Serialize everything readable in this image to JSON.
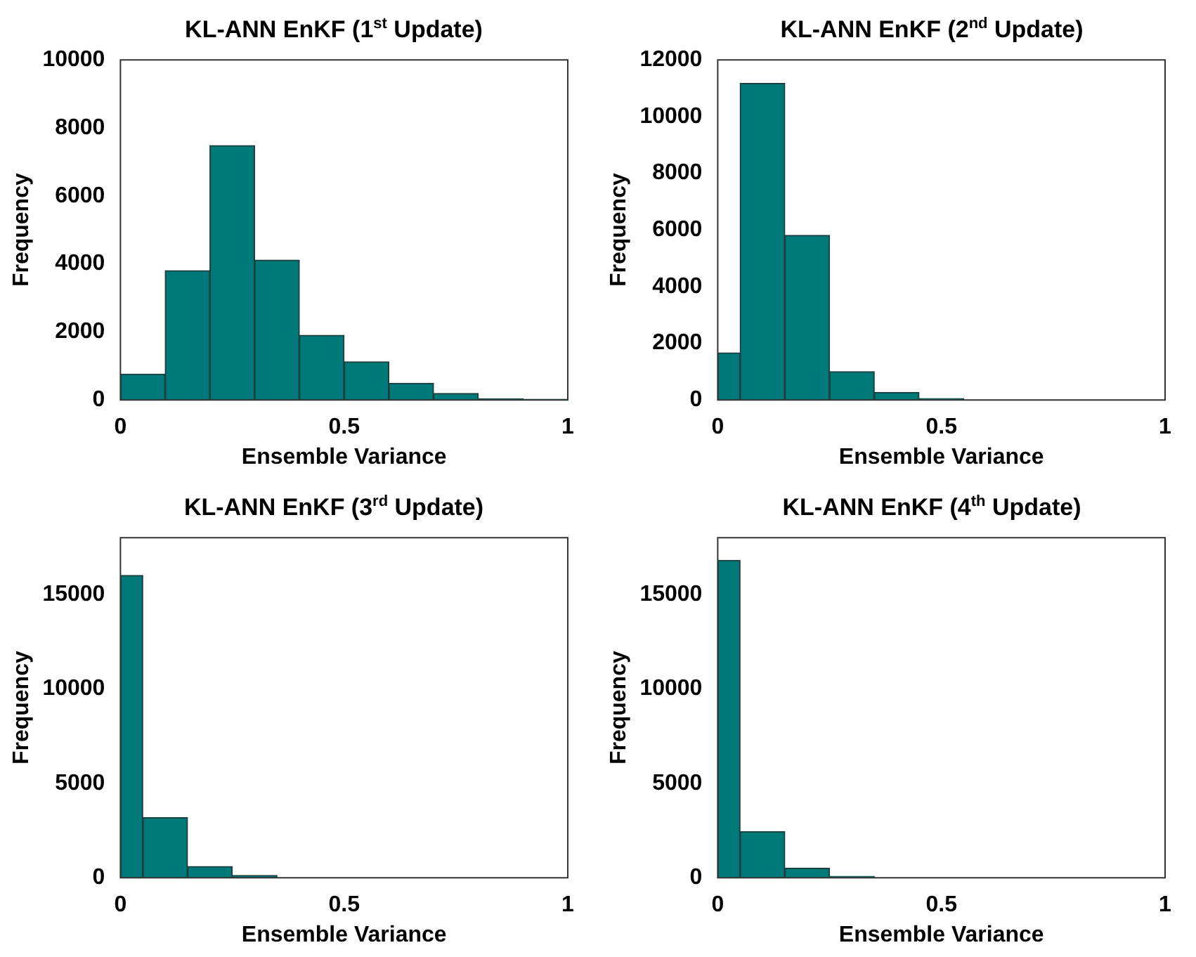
{
  "chart_data": [
    {
      "type": "histogram",
      "title": "KL-ANN EnKF (1$^{st}$ Update)",
      "xlabel": "Ensemble Variance",
      "ylabel": "Frequency",
      "color": "#007a78",
      "bins": [
        0,
        0.1,
        0.2,
        0.3,
        0.4,
        0.5,
        0.6,
        0.7,
        0.8,
        0.9,
        1
      ],
      "values": [
        760,
        3800,
        7480,
        4110,
        1900,
        1120,
        490,
        190,
        30,
        20
      ],
      "xlim": [
        0,
        1
      ],
      "xticks": [
        0,
        0.5,
        1
      ],
      "ylim": [
        0,
        10000
      ],
      "yticks": [
        0,
        2000,
        4000,
        6000,
        8000,
        10000
      ]
    },
    {
      "type": "histogram",
      "title": "KL-ANN EnKF (2$^{nd}$ Update)",
      "xlabel": "Ensemble Variance",
      "ylabel": "Frequency",
      "color": "#007a78",
      "bins": [
        0,
        0.05,
        0.15,
        0.25,
        0.35,
        0.45,
        0.55
      ],
      "values": [
        1660,
        11170,
        5810,
        1000,
        270,
        50
      ],
      "xlim": [
        0,
        1
      ],
      "xticks": [
        0,
        0.5,
        1
      ],
      "ylim": [
        0,
        12000
      ],
      "yticks": [
        0,
        2000,
        4000,
        6000,
        8000,
        10000,
        12000
      ]
    },
    {
      "type": "histogram",
      "title": "KL-ANN EnKF (3$^{rd}$ Update)",
      "xlabel": "Ensemble Variance",
      "ylabel": "Frequency",
      "color": "#007a78",
      "bins": [
        0,
        0.05,
        0.15,
        0.25,
        0.35
      ],
      "values": [
        16000,
        3180,
        600,
        120
      ],
      "xlim": [
        0,
        1
      ],
      "xticks": [
        0,
        0.5,
        1
      ],
      "ylim": [
        0,
        18000
      ],
      "yticks": [
        0,
        5000,
        10000,
        15000
      ]
    },
    {
      "type": "histogram",
      "title": "KL-ANN EnKF (4$^{th}$ Update)",
      "xlabel": "Ensemble Variance",
      "ylabel": "Frequency",
      "color": "#007a78",
      "bins": [
        0,
        0.05,
        0.15,
        0.25,
        0.35
      ],
      "values": [
        16800,
        2450,
        500,
        80
      ],
      "xlim": [
        0,
        1
      ],
      "xticks": [
        0,
        0.5,
        1
      ],
      "ylim": [
        0,
        18000
      ],
      "yticks": [
        0,
        5000,
        10000,
        15000
      ]
    }
  ]
}
